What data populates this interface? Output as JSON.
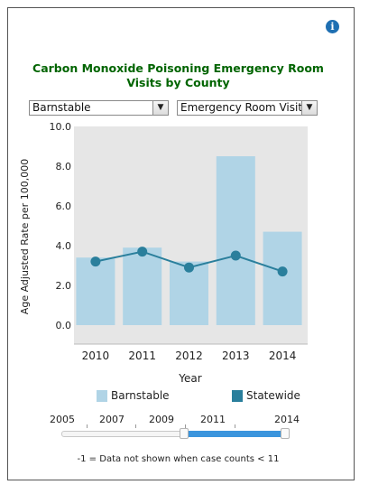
{
  "title": "Carbon Monoxide Poisoning Emergency Room Visits by County",
  "controls": {
    "county_value": "Barnstable",
    "measure_value": "Emergency Room Visits"
  },
  "icons": {
    "info": "info-icon",
    "dropdown": "chevron-down-icon"
  },
  "chart_data": {
    "type": "bar",
    "categories": [
      "2010",
      "2011",
      "2012",
      "2013",
      "2014"
    ],
    "series": [
      {
        "name": "Barnstable",
        "type": "bar",
        "values": [
          3.4,
          3.9,
          3.2,
          8.5,
          4.7
        ],
        "color": "#b0d4e6"
      },
      {
        "name": "Statewide",
        "type": "line",
        "values": [
          3.2,
          3.7,
          2.9,
          3.5,
          2.7
        ],
        "color": "#2a7f9c"
      }
    ],
    "xlabel": "Year",
    "ylabel": "Age Adjusted Rate per 100,000",
    "ylim": [
      0,
      10
    ],
    "yticks": [
      "0.0",
      "2.0",
      "4.0",
      "6.0",
      "8.0",
      "10.0"
    ],
    "grid": false,
    "legend": "bottom"
  },
  "legend": [
    {
      "label": "Barnstable",
      "color": "#b0d4e6"
    },
    {
      "label": "Statewide",
      "color": "#2a7f9c"
    }
  ],
  "slider": {
    "labels": [
      "2005",
      "2007",
      "2009",
      "2011",
      "2014"
    ],
    "selected_range": [
      "2010",
      "2014"
    ]
  },
  "footnote": "-1 = Data not shown when case counts < 11"
}
